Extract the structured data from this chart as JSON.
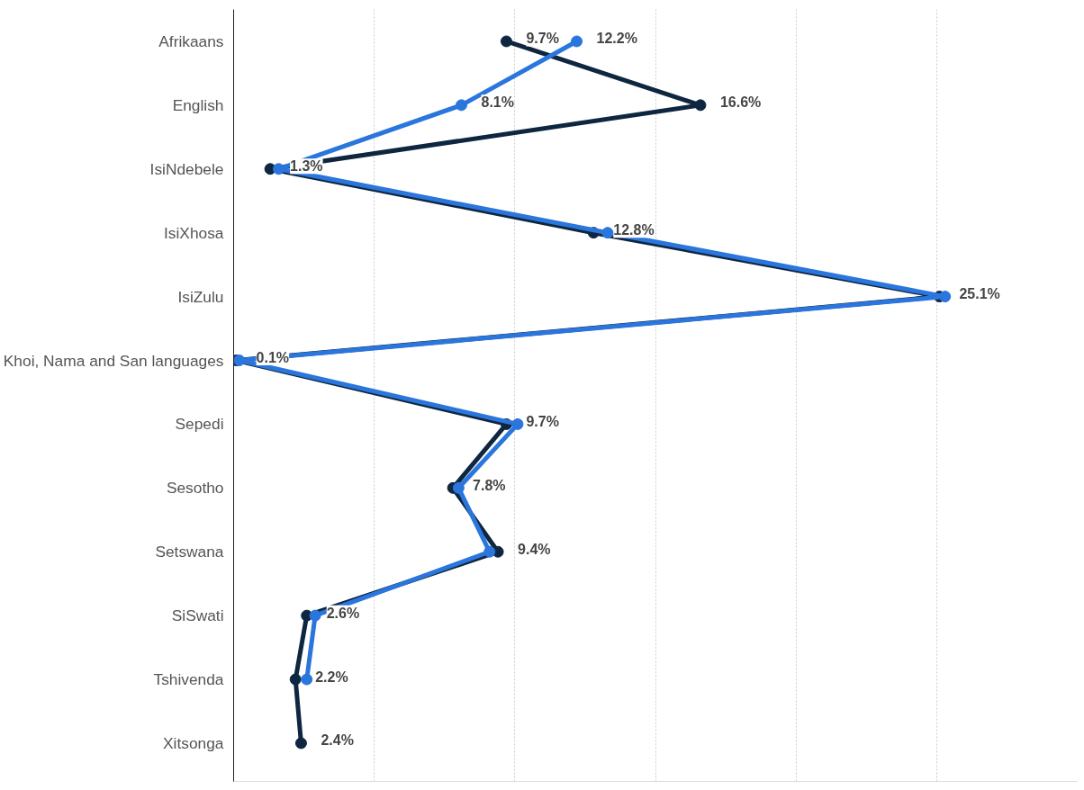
{
  "chart_data": {
    "type": "line",
    "orientation": "horizontal",
    "categories": [
      "Afrikaans",
      "English",
      "IsiNdebele",
      "IsiXhosa",
      "IsiZulu",
      "Khoi, Nama and San languages",
      "Sepedi",
      "Sesotho",
      "Setswana",
      "SiSwati",
      "Tshivenda",
      "Xitsonga"
    ],
    "series": [
      {
        "color": "#0f2640",
        "values": [
          9.7,
          16.6,
          1.3,
          12.8,
          25.1,
          0.1,
          9.7,
          7.8,
          9.4,
          2.6,
          2.2,
          2.4
        ],
        "value_labels": [
          "9.7%",
          "16.6%",
          "1.3%",
          "12.8%",
          "25.1%",
          "0.1%",
          "9.7%",
          "7.8%",
          "9.4%",
          "2.6%",
          "2.2%",
          "2.4%"
        ]
      },
      {
        "color": "#2a76dd",
        "values": [
          12.2,
          8.1,
          1.6,
          13.3,
          25.3,
          0.2,
          10.1,
          8.0,
          9.1,
          2.9,
          2.6,
          null
        ],
        "value_labels": [
          "12.2%",
          "8.1%",
          null,
          null,
          null,
          null,
          null,
          null,
          null,
          null,
          null,
          null
        ]
      }
    ],
    "xlim": [
      0,
      30
    ],
    "xticks": [
      {
        "value": 5,
        "label": null
      },
      {
        "value": 10,
        "label": null
      },
      {
        "value": 15,
        "label": null
      },
      {
        "value": 20,
        "label": null
      },
      {
        "value": 25,
        "label": null
      }
    ],
    "tick_labels": "y",
    "grid": "x",
    "marker": "circle",
    "line_style": "solid"
  }
}
